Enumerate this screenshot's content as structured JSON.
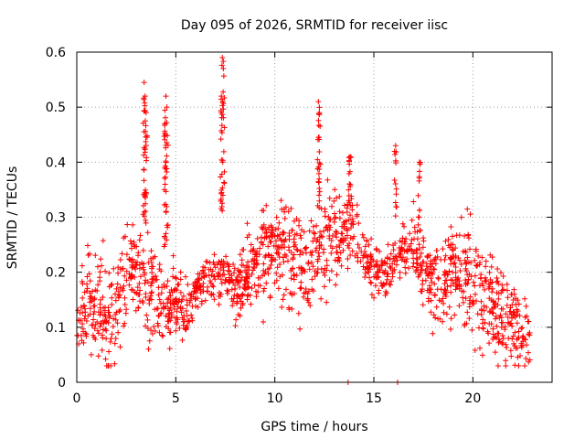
{
  "chart_data": {
    "type": "scatter",
    "title": "Day 095 of 2026, SRMTID for receiver iisc",
    "xlabel": "GPS time / hours",
    "ylabel": "SRMTID / TECUs",
    "xlim": [
      0,
      24
    ],
    "ylim": [
      0,
      0.6
    ],
    "xticks": [
      0,
      5,
      10,
      15,
      20
    ],
    "yticks": [
      0,
      0.1,
      0.2,
      0.3,
      0.4,
      0.5,
      0.6
    ],
    "xtick_labels": [
      "0",
      "5",
      "10",
      "15",
      "20"
    ],
    "ytick_labels": [
      "0",
      "0.1",
      "0.2",
      "0.3",
      "0.4",
      "0.5",
      "0.6"
    ],
    "grid": true,
    "marker": "+",
    "color": "#ff0000",
    "trend": [
      [
        0.0,
        0.12
      ],
      [
        0.5,
        0.15
      ],
      [
        1.0,
        0.14
      ],
      [
        1.5,
        0.11
      ],
      [
        2.0,
        0.15
      ],
      [
        2.5,
        0.19
      ],
      [
        3.0,
        0.2
      ],
      [
        3.5,
        0.19
      ],
      [
        4.0,
        0.15
      ],
      [
        4.5,
        0.14
      ],
      [
        5.0,
        0.15
      ],
      [
        5.5,
        0.13
      ],
      [
        6.0,
        0.17
      ],
      [
        6.5,
        0.19
      ],
      [
        7.0,
        0.18
      ],
      [
        7.5,
        0.2
      ],
      [
        8.0,
        0.16
      ],
      [
        8.5,
        0.19
      ],
      [
        9.0,
        0.21
      ],
      [
        9.5,
        0.23
      ],
      [
        10.0,
        0.25
      ],
      [
        10.5,
        0.24
      ],
      [
        11.0,
        0.22
      ],
      [
        11.5,
        0.21
      ],
      [
        12.0,
        0.23
      ],
      [
        12.5,
        0.25
      ],
      [
        13.0,
        0.27
      ],
      [
        13.5,
        0.28
      ],
      [
        14.0,
        0.27
      ],
      [
        14.5,
        0.24
      ],
      [
        15.0,
        0.2
      ],
      [
        15.5,
        0.19
      ],
      [
        16.0,
        0.22
      ],
      [
        16.5,
        0.24
      ],
      [
        17.0,
        0.25
      ],
      [
        17.5,
        0.2
      ],
      [
        18.0,
        0.17
      ],
      [
        18.5,
        0.18
      ],
      [
        19.0,
        0.21
      ],
      [
        19.5,
        0.2
      ],
      [
        20.0,
        0.18
      ],
      [
        20.5,
        0.16
      ],
      [
        21.0,
        0.14
      ],
      [
        21.5,
        0.12
      ],
      [
        22.0,
        0.11
      ],
      [
        22.5,
        0.08
      ],
      [
        22.9,
        0.07
      ]
    ],
    "spikes": [
      {
        "x": 3.4,
        "y": 0.545
      },
      {
        "x": 3.45,
        "y": 0.52
      },
      {
        "x": 3.5,
        "y": 0.49
      },
      {
        "x": 4.5,
        "y": 0.52
      },
      {
        "x": 4.55,
        "y": 0.5
      },
      {
        "x": 4.45,
        "y": 0.47
      },
      {
        "x": 7.35,
        "y": 0.59
      },
      {
        "x": 7.4,
        "y": 0.57
      },
      {
        "x": 7.3,
        "y": 0.52
      },
      {
        "x": 12.2,
        "y": 0.51
      },
      {
        "x": 12.25,
        "y": 0.49
      },
      {
        "x": 16.1,
        "y": 0.43
      },
      {
        "x": 17.3,
        "y": 0.4
      },
      {
        "x": 13.8,
        "y": 0.41
      }
    ],
    "zeros": [
      {
        "x": 13.7,
        "y": 0.0
      },
      {
        "x": 16.2,
        "y": 0.0
      }
    ]
  }
}
